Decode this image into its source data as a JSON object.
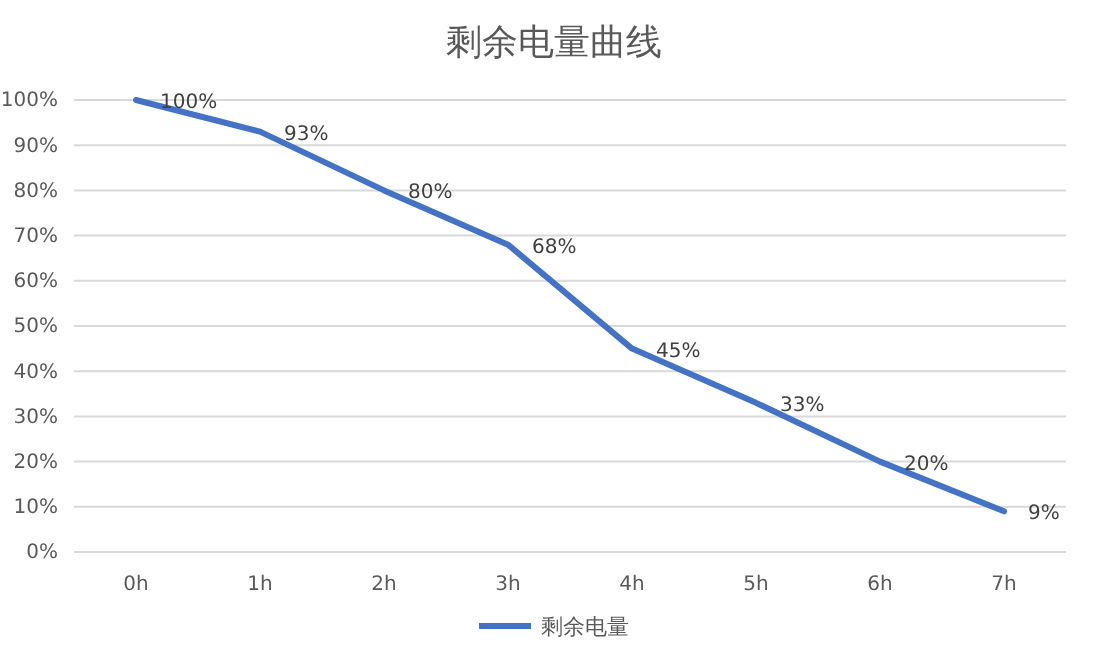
{
  "chart_data": {
    "type": "line",
    "title": "剩余电量曲线",
    "categories": [
      "0h",
      "1h",
      "2h",
      "3h",
      "4h",
      "5h",
      "6h",
      "7h"
    ],
    "series": [
      {
        "name": "剩余电量",
        "color": "#4472c4",
        "values": [
          100,
          93,
          80,
          68,
          45,
          33,
          20,
          9
        ],
        "value_labels": [
          "100%",
          "93%",
          "80%",
          "68%",
          "45%",
          "33%",
          "20%",
          "9%"
        ]
      }
    ],
    "ylim": [
      0,
      100
    ],
    "yticks": [
      {
        "value": 0,
        "label": "0%"
      },
      {
        "value": 10,
        "label": "10%"
      },
      {
        "value": 20,
        "label": "20%"
      },
      {
        "value": 30,
        "label": "30%"
      },
      {
        "value": 40,
        "label": "40%"
      },
      {
        "value": 50,
        "label": "50%"
      },
      {
        "value": 60,
        "label": "60%"
      },
      {
        "value": 70,
        "label": "70%"
      },
      {
        "value": 80,
        "label": "80%"
      },
      {
        "value": 90,
        "label": "90%"
      },
      {
        "value": 100,
        "label": "100%"
      }
    ],
    "grid": "y",
    "legend": "bottom",
    "marker": "none",
    "line_style": "solid"
  }
}
